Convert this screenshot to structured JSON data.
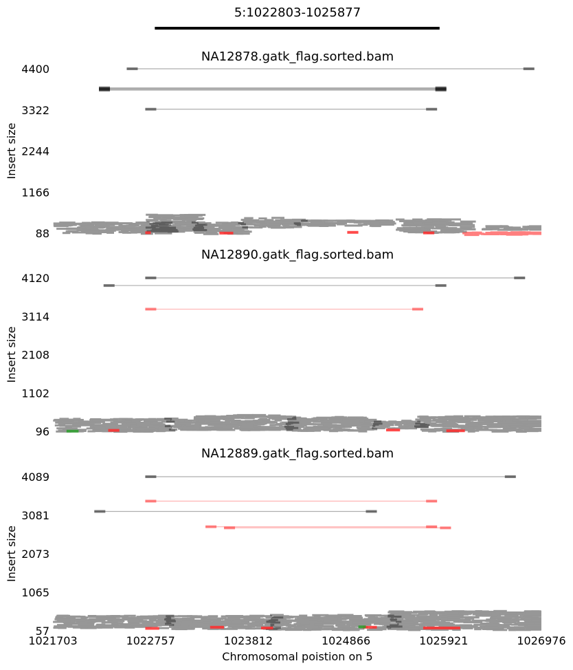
{
  "chart_data": {
    "type": "scatter",
    "title": "5:1022803-1025877",
    "region": {
      "start": 1022803,
      "end": 1025877
    },
    "xlabel": "Chromosomal poistion on 5",
    "xlim": [
      1021703,
      1026976
    ],
    "xticks": [
      "1021703",
      "1022757",
      "1023812",
      "1024866",
      "1025921",
      "1026976"
    ],
    "colors": {
      "normal": "#1a1a1a",
      "discordant": "#ff2b2b",
      "other": "#2ca02c",
      "region_bar": "#000000"
    },
    "panels": [
      {
        "name": "NA12878.gatk_flag.sorted.bam",
        "ylabel": "Insert size",
        "ylim": [
          88,
          4400
        ],
        "yticks": [
          "4400",
          "3322",
          "2244",
          "1166",
          "88"
        ],
        "long_pairs": [
          {
            "x1": 1022500,
            "x2": 1026900,
            "y": 4400,
            "color": "normal"
          },
          {
            "x1": 1022200,
            "x2": 1025950,
            "y": 3900,
            "color": "normal"
          },
          {
            "x1": 1022200,
            "x2": 1025950,
            "y": 3880,
            "color": "normal"
          },
          {
            "x1": 1022200,
            "x2": 1025950,
            "y": 3860,
            "color": "normal"
          },
          {
            "x1": 1022200,
            "x2": 1025950,
            "y": 3840,
            "color": "normal"
          },
          {
            "x1": 1022700,
            "x2": 1025850,
            "y": 3340,
            "color": "normal"
          }
        ],
        "clusters": [
          {
            "x1": 1021703,
            "x2": 1022900,
            "y1": 100,
            "y2": 400,
            "color": "normal"
          },
          {
            "x1": 1022700,
            "x2": 1023200,
            "y1": 150,
            "y2": 600,
            "color": "normal"
          },
          {
            "x1": 1023200,
            "x2": 1023700,
            "y1": 90,
            "y2": 400,
            "color": "normal"
          },
          {
            "x1": 1023700,
            "x2": 1024300,
            "y1": 250,
            "y2": 520,
            "color": "normal"
          },
          {
            "x1": 1024300,
            "x2": 1025300,
            "y1": 300,
            "y2": 450,
            "color": "normal"
          },
          {
            "x1": 1025400,
            "x2": 1026100,
            "y1": 120,
            "y2": 480,
            "color": "normal"
          },
          {
            "x1": 1026300,
            "x2": 1026976,
            "y1": 200,
            "y2": 300,
            "color": "normal"
          },
          {
            "x1": 1026100,
            "x2": 1026976,
            "y1": 88,
            "y2": 140,
            "color": "discordant"
          }
        ],
        "spots": [
          {
            "x1": 1022700,
            "x2": 1022760,
            "y": 100,
            "color": "discordant"
          },
          {
            "x1": 1023500,
            "x2": 1023650,
            "y": 90,
            "color": "discordant"
          },
          {
            "x1": 1024880,
            "x2": 1025000,
            "y": 110,
            "color": "discordant"
          },
          {
            "x1": 1025700,
            "x2": 1025820,
            "y": 95,
            "color": "discordant"
          }
        ]
      },
      {
        "name": "NA12890.gatk_flag.sorted.bam",
        "ylabel": "Insert size",
        "ylim": [
          96,
          4120
        ],
        "yticks": [
          "4120",
          "3114",
          "2108",
          "1102",
          "96"
        ],
        "long_pairs": [
          {
            "x1": 1022700,
            "x2": 1026800,
            "y": 4120,
            "color": "normal"
          },
          {
            "x1": 1022250,
            "x2": 1025950,
            "y": 3920,
            "color": "normal"
          },
          {
            "x1": 1022700,
            "x2": 1025700,
            "y": 3300,
            "color": "discordant"
          }
        ],
        "clusters": [
          {
            "x1": 1021703,
            "x2": 1022900,
            "y1": 110,
            "y2": 450,
            "color": "normal"
          },
          {
            "x1": 1022900,
            "x2": 1024200,
            "y1": 150,
            "y2": 550,
            "color": "normal"
          },
          {
            "x1": 1024200,
            "x2": 1025100,
            "y1": 120,
            "y2": 500,
            "color": "normal"
          },
          {
            "x1": 1025100,
            "x2": 1025600,
            "y1": 200,
            "y2": 400,
            "color": "normal"
          },
          {
            "x1": 1025600,
            "x2": 1026976,
            "y1": 110,
            "y2": 520,
            "color": "normal"
          }
        ],
        "spots": [
          {
            "x1": 1021850,
            "x2": 1021980,
            "y": 100,
            "color": "other"
          },
          {
            "x1": 1022300,
            "x2": 1022420,
            "y": 120,
            "color": "discordant"
          },
          {
            "x1": 1025300,
            "x2": 1025450,
            "y": 130,
            "color": "discordant"
          },
          {
            "x1": 1025950,
            "x2": 1026150,
            "y": 110,
            "color": "discordant"
          }
        ]
      },
      {
        "name": "NA12889.gatk_flag.sorted.bam",
        "ylabel": "Insert size",
        "ylim": [
          57,
          4089
        ],
        "yticks": [
          "4089",
          "3081",
          "2073",
          "1065",
          "57"
        ],
        "long_pairs": [
          {
            "x1": 1022700,
            "x2": 1026700,
            "y": 4089,
            "color": "normal"
          },
          {
            "x1": 1022700,
            "x2": 1025850,
            "y": 3450,
            "color": "discordant"
          },
          {
            "x1": 1022150,
            "x2": 1025200,
            "y": 3180,
            "color": "normal"
          },
          {
            "x1": 1023350,
            "x2": 1025850,
            "y": 2780,
            "color": "discordant"
          },
          {
            "x1": 1023550,
            "x2": 1026000,
            "y": 2750,
            "color": "discordant"
          }
        ],
        "clusters": [
          {
            "x1": 1021703,
            "x2": 1022900,
            "y1": 150,
            "y2": 480,
            "color": "normal"
          },
          {
            "x1": 1022900,
            "x2": 1024000,
            "y1": 120,
            "y2": 480,
            "color": "normal"
          },
          {
            "x1": 1024000,
            "x2": 1025300,
            "y1": 100,
            "y2": 500,
            "color": "normal"
          },
          {
            "x1": 1025300,
            "x2": 1026976,
            "y1": 100,
            "y2": 600,
            "color": "normal"
          }
        ],
        "spots": [
          {
            "x1": 1022700,
            "x2": 1022850,
            "y": 120,
            "color": "discordant"
          },
          {
            "x1": 1023400,
            "x2": 1023550,
            "y": 150,
            "color": "discordant"
          },
          {
            "x1": 1023950,
            "x2": 1024080,
            "y": 130,
            "color": "discordant"
          },
          {
            "x1": 1025050,
            "x2": 1025200,
            "y": 150,
            "color": "discordant"
          },
          {
            "x1": 1025700,
            "x2": 1026100,
            "y": 130,
            "color": "discordant"
          },
          {
            "x1": 1025000,
            "x2": 1025080,
            "y": 160,
            "color": "other"
          }
        ]
      }
    ]
  }
}
